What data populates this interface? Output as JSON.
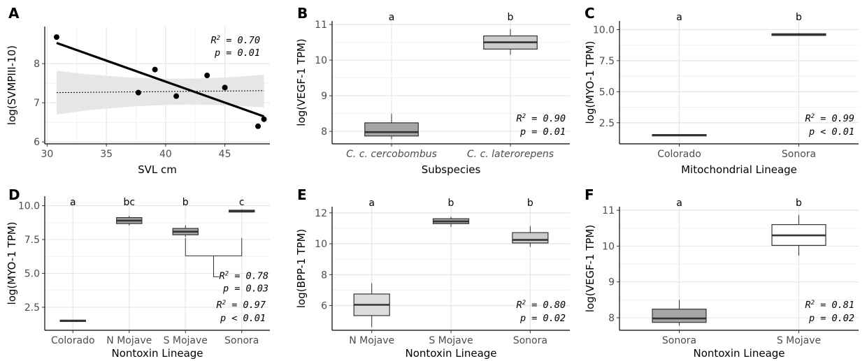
{
  "chart_data": [
    {
      "panel": "A",
      "type": "scatter",
      "xlabel": "SVL  cm",
      "ylabel": "log(SVMPIII-10)",
      "xlim": [
        29.8,
        48.8
      ],
      "ylim": [
        5.95,
        8.95
      ],
      "xticks": [
        "30",
        "35",
        "40",
        "45"
      ],
      "xtick_values": [
        30,
        35,
        40,
        45
      ],
      "yticks": [
        "6",
        "7",
        "8"
      ],
      "ytick_values": [
        6,
        7,
        8
      ],
      "points": [
        {
          "x": 30.8,
          "y": 8.68
        },
        {
          "x": 37.7,
          "y": 7.26
        },
        {
          "x": 39.1,
          "y": 7.85
        },
        {
          "x": 40.9,
          "y": 7.17
        },
        {
          "x": 43.5,
          "y": 7.7
        },
        {
          "x": 45.0,
          "y": 7.39
        },
        {
          "x": 47.8,
          "y": 6.4
        },
        {
          "x": 48.3,
          "y": 6.58
        }
      ],
      "fit_line": {
        "x": [
          30.8,
          48.3
        ],
        "y": [
          8.53,
          6.65
        ]
      },
      "null_line": {
        "x": [
          30.8,
          48.3
        ],
        "y": [
          7.26,
          7.31
        ]
      },
      "null_band": {
        "x": [
          30.8,
          48.3
        ],
        "lower": [
          6.7,
          6.88
        ],
        "upper": [
          7.82,
          7.72
        ]
      },
      "stats": {
        "r2": "= 0.70",
        "p": "p = 0.01"
      },
      "grid": true
    },
    {
      "panel": "B",
      "type": "box",
      "xlabel": "Subspecies",
      "ylabel": "log(VEGF-1 TPM)",
      "categories": [
        "C. c. cercobombus",
        "C. c. laterorepens"
      ],
      "italic_categories": true,
      "ylim": [
        7.65,
        11.1
      ],
      "yticks": [
        "8",
        "9",
        "10",
        "11"
      ],
      "ytick_values": [
        8,
        9,
        10,
        11
      ],
      "boxes": [
        {
          "q1": 7.87,
          "median": 7.98,
          "q3": 8.24,
          "min": 7.78,
          "max": 8.5,
          "fill": "#a6a6a6"
        },
        {
          "q1": 10.31,
          "median": 10.5,
          "q3": 10.68,
          "min": 10.15,
          "max": 10.87,
          "fill": "#cccccc"
        }
      ],
      "sig_letters": [
        "a",
        "b"
      ],
      "stats": {
        "r2": "= 0.90",
        "p": "p = 0.01"
      }
    },
    {
      "panel": "C",
      "type": "box",
      "xlabel": "Mitochondrial Lineage",
      "ylabel": "log(MYO-1 TPM)",
      "categories": [
        "Colorado",
        "Sonora"
      ],
      "ylim": [
        0.8,
        10.7
      ],
      "yticks": [
        "2.5",
        "5.0",
        "7.5",
        "10.0"
      ],
      "ytick_values": [
        2.5,
        5.0,
        7.5,
        10.0
      ],
      "boxes": [
        {
          "q1": 1.45,
          "median": 1.5,
          "q3": 1.55,
          "min": 1.45,
          "max": 1.55,
          "fill": "#595959"
        },
        {
          "q1": 9.53,
          "median": 9.6,
          "q3": 9.67,
          "min": 9.5,
          "max": 9.72,
          "fill": "#595959"
        }
      ],
      "sig_letters": [
        "a",
        "b"
      ],
      "stats": {
        "r2": "= 0.99",
        "p": "p < 0.01"
      }
    },
    {
      "panel": "D",
      "type": "box",
      "xlabel": "Nontoxin Lineage",
      "ylabel": "log(MYO-1 TPM)",
      "categories": [
        "Colorado",
        "N Mojave",
        "S Mojave",
        "Sonora"
      ],
      "ylim": [
        0.8,
        10.7
      ],
      "yticks": [
        "2.5",
        "5.0",
        "7.5",
        "10.0"
      ],
      "ytick_values": [
        2.5,
        5.0,
        7.5,
        10.0
      ],
      "boxes": [
        {
          "q1": 1.45,
          "median": 1.5,
          "q3": 1.55,
          "min": 1.45,
          "max": 1.55,
          "fill": "#595959"
        },
        {
          "q1": 8.68,
          "median": 8.9,
          "q3": 9.12,
          "min": 8.55,
          "max": 9.25,
          "fill": "#a6a6a6"
        },
        {
          "q1": 7.85,
          "median": 8.08,
          "q3": 8.32,
          "min": 7.7,
          "max": 8.55,
          "fill": "#a6a6a6"
        },
        {
          "q1": 9.53,
          "median": 9.6,
          "q3": 9.67,
          "min": 9.5,
          "max": 9.72,
          "fill": "#595959"
        }
      ],
      "sig_letters": [
        "a",
        "bc",
        "b",
        "c"
      ],
      "bracket": {
        "from": "S Mojave",
        "to": "Sonora",
        "y": 7.2,
        "drop": 6.3
      },
      "stats_bracket": {
        "r2": "= 0.78",
        "p": "p = 0.03"
      },
      "stats": {
        "r2": "= 0.97",
        "p": "p < 0.01"
      }
    },
    {
      "panel": "E",
      "type": "box",
      "xlabel": "Nontoxin Lineage",
      "ylabel": "log(BPP-1 TPM)",
      "categories": [
        "N Mojave",
        "S Mojave",
        "Sonora"
      ],
      "ylim": [
        4.4,
        12.4
      ],
      "yticks": [
        "6",
        "8",
        "10",
        "12"
      ],
      "ytick_values": [
        6,
        8,
        10,
        12
      ],
      "boxes": [
        {
          "q1": 5.35,
          "median": 6.05,
          "q3": 6.75,
          "min": 4.6,
          "max": 7.45,
          "fill": "#dcdcdc"
        },
        {
          "q1": 11.3,
          "median": 11.45,
          "q3": 11.62,
          "min": 11.1,
          "max": 11.75,
          "fill": "#a6a6a6"
        },
        {
          "q1": 10.05,
          "median": 10.25,
          "q3": 10.72,
          "min": 9.8,
          "max": 11.15,
          "fill": "#cccccc"
        }
      ],
      "sig_letters": [
        "a",
        "b",
        "b"
      ],
      "stats": {
        "r2": "= 0.80",
        "p": "p = 0.02"
      }
    },
    {
      "panel": "F",
      "type": "box",
      "xlabel": "Nontoxin Lineage",
      "ylabel": "log(VEGF-1 TPM)",
      "categories": [
        "Sonora",
        "S Mojave"
      ],
      "ylim": [
        7.65,
        11.1
      ],
      "yticks": [
        "8",
        "9",
        "10",
        "11"
      ],
      "ytick_values": [
        8,
        9,
        10,
        11
      ],
      "boxes": [
        {
          "q1": 7.87,
          "median": 7.98,
          "q3": 8.24,
          "min": 7.78,
          "max": 8.5,
          "fill": "#a6a6a6"
        },
        {
          "q1": 10.02,
          "median": 10.3,
          "q3": 10.6,
          "min": 9.73,
          "max": 10.87,
          "fill": "#ffffff"
        }
      ],
      "sig_letters": [
        "a",
        "b"
      ],
      "stats": {
        "r2": "= 0.81",
        "p": "p = 0.02"
      }
    }
  ]
}
